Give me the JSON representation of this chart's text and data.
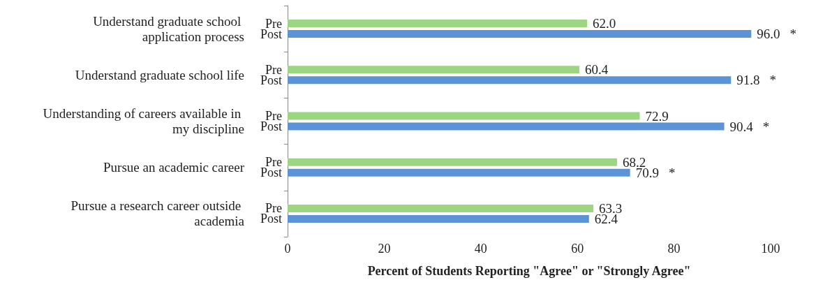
{
  "chart_data": {
    "type": "bar",
    "orientation": "horizontal",
    "xlabel": "Percent of Students Reporting \"Agree\" or \"Strongly Agree\"",
    "categories": [
      "Understand graduate school application process",
      "Understand graduate school life",
      "Understanding of careers available in my discipline",
      "Pursue an academic career",
      "Pursue a research career outside academia"
    ],
    "series": [
      {
        "name": "Pre",
        "color": "#9dd680",
        "values": [
          62.0,
          60.4,
          72.9,
          68.2,
          63.3
        ],
        "value_labels": [
          "62.0",
          "60.4",
          "72.9",
          "68.2",
          "63.3"
        ]
      },
      {
        "name": "Post",
        "color": "#5b93d6",
        "values": [
          96.0,
          91.8,
          90.4,
          70.9,
          62.4
        ],
        "value_labels": [
          "96.0",
          "91.8",
          "90.4",
          "70.9",
          "62.4"
        ]
      }
    ],
    "xlim": [
      0,
      100
    ],
    "xticks": [
      0,
      20,
      40,
      60,
      80,
      100
    ],
    "grid": false,
    "legend": false,
    "annotations": [
      "*",
      "*",
      "*",
      "*"
    ]
  }
}
